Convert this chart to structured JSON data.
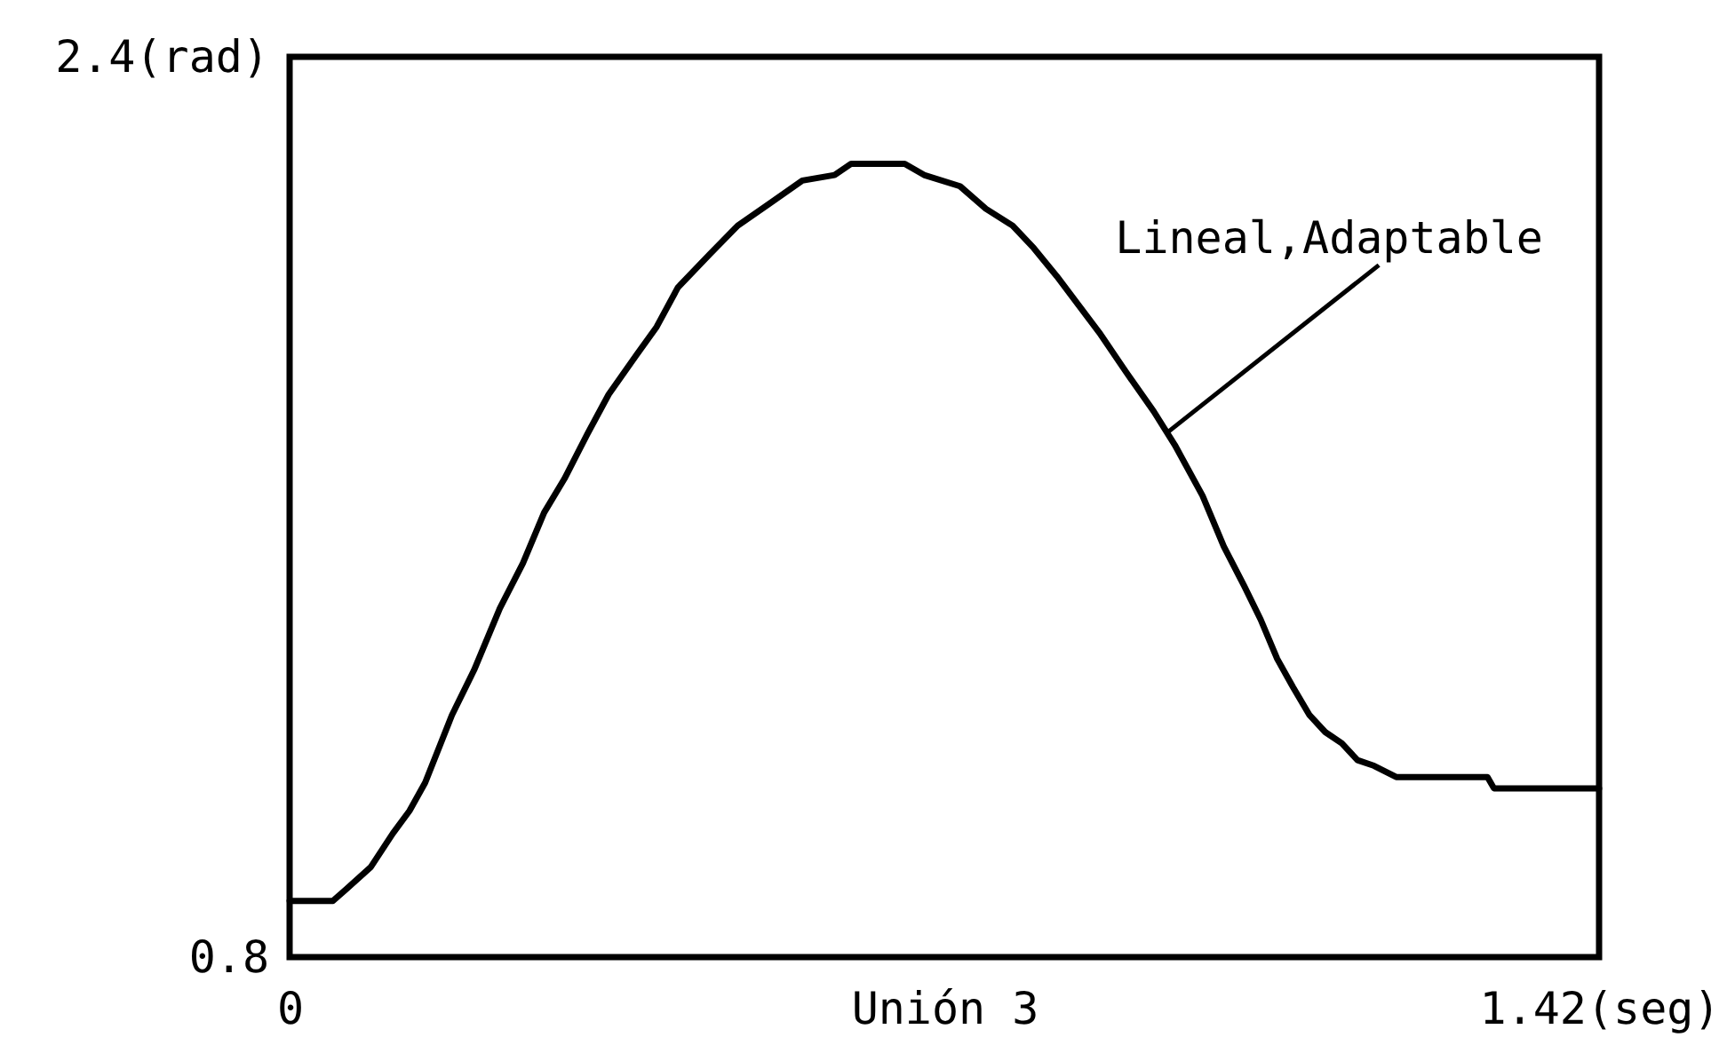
{
  "chart_data": {
    "type": "line",
    "xlabel": "Unión 3",
    "x": [
      0,
      0.047,
      0.061,
      0.088,
      0.112,
      0.13,
      0.147,
      0.176,
      0.2,
      0.228,
      0.253,
      0.276,
      0.298,
      0.323,
      0.346,
      0.376,
      0.398,
      0.421,
      0.456,
      0.486,
      0.521,
      0.556,
      0.591,
      0.609,
      0.667,
      0.688,
      0.727,
      0.755,
      0.784,
      0.807,
      0.832,
      0.855,
      0.878,
      0.907,
      0.937,
      0.96,
      0.99,
      1.013,
      1.035,
      1.053,
      1.071,
      1.088,
      1.106,
      1.123,
      1.141,
      1.158,
      1.176,
      1.2,
      1.229,
      1.299,
      1.306,
      1.42
    ],
    "series": [
      {
        "color": "#000000",
        "values": [
          0.9,
          0.9,
          0.92,
          0.96,
          1.02,
          1.06,
          1.11,
          1.23,
          1.31,
          1.42,
          1.5,
          1.59,
          1.65,
          1.73,
          1.8,
          1.87,
          1.92,
          1.99,
          2.05,
          2.1,
          2.14,
          2.18,
          2.19,
          2.21,
          2.21,
          2.19,
          2.17,
          2.13,
          2.1,
          2.06,
          2.01,
          1.96,
          1.91,
          1.84,
          1.77,
          1.71,
          1.62,
          1.53,
          1.46,
          1.4,
          1.33,
          1.28,
          1.23,
          1.2,
          1.18,
          1.15,
          1.14,
          1.12,
          1.12,
          1.12,
          1.1,
          1.1
        ]
      }
    ],
    "xlim": [
      0,
      1.42
    ],
    "xticks": [
      0,
      {
        "value": 1.42,
        "label": "1.42(seg)"
      }
    ],
    "ylim": [
      0.8,
      2.4
    ],
    "yticks": [
      0.8,
      {
        "value": 2.4,
        "label": "2.4(rad)"
      }
    ],
    "line_style": "solid",
    "annotations": [
      {
        "text": "Lineal,Adaptable",
        "x": 0.95,
        "y": 1.73
      }
    ]
  }
}
